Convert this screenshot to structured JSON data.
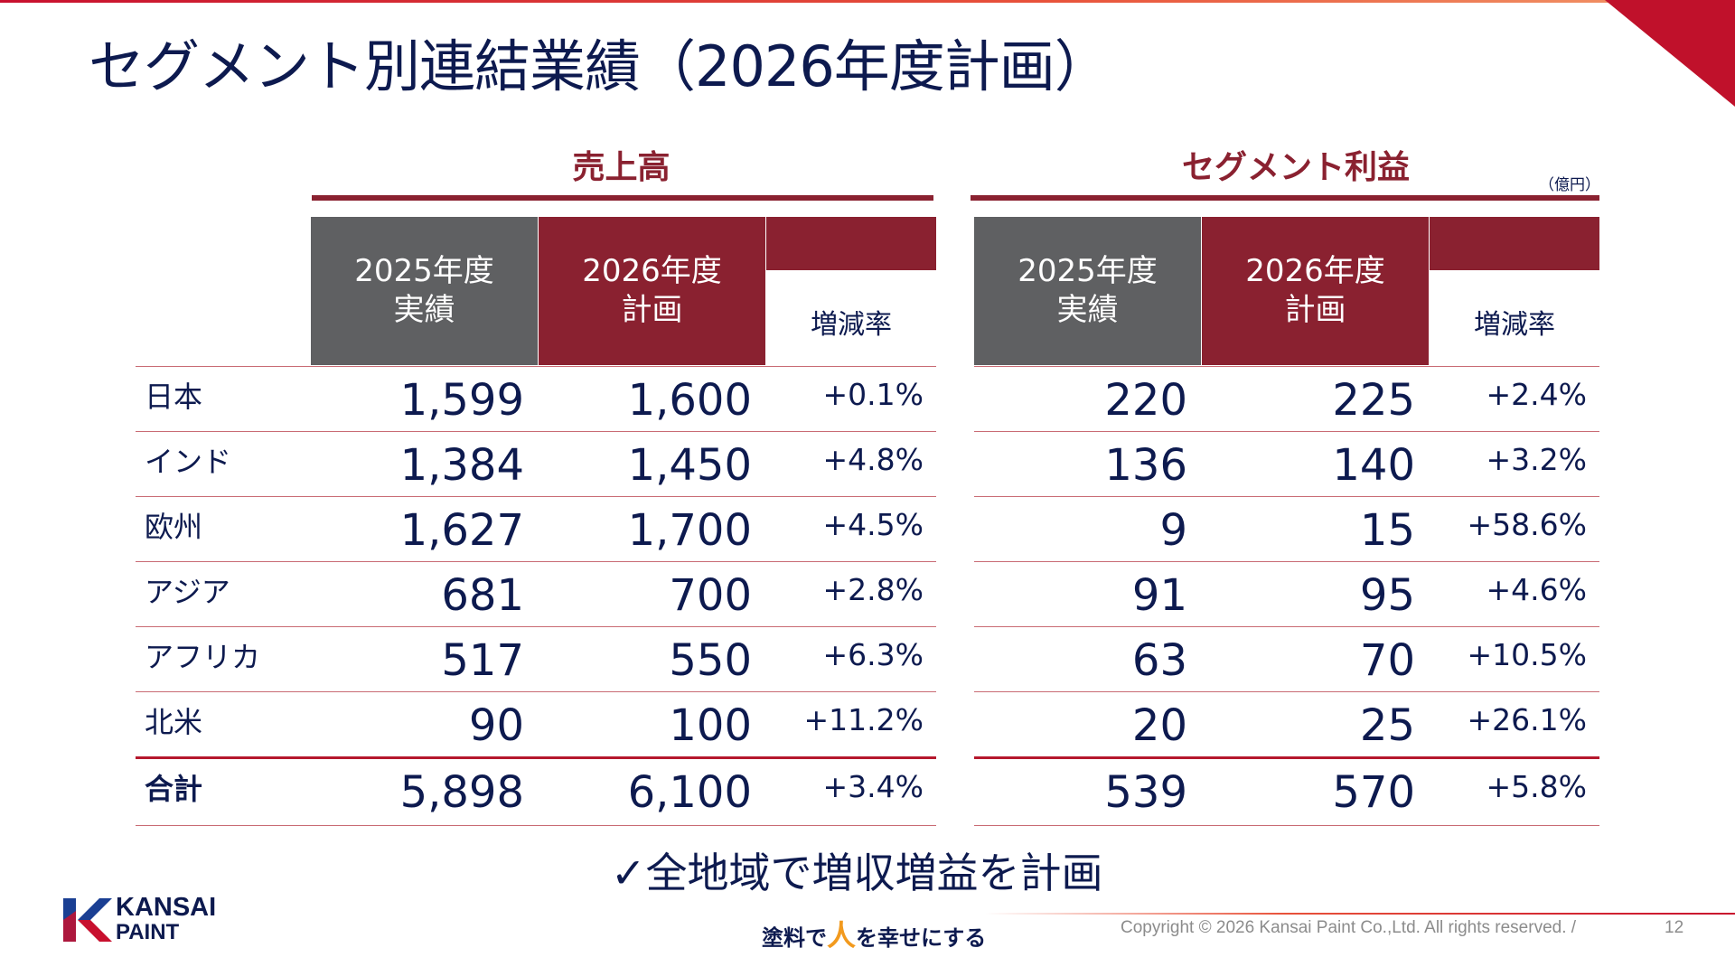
{
  "title": "セグメント別連結業績（2026年度計画）",
  "sales_header": "売上高",
  "profit_header": "セグメント利益",
  "unit": "（億円）",
  "columns": {
    "actual": [
      "2025年度",
      "実績"
    ],
    "plan": [
      "2026年度",
      "計画"
    ],
    "rate": "増減率"
  },
  "rows": [
    {
      "region": "日本",
      "sales_actual": "1,599",
      "sales_plan": "1,600",
      "sales_rate": "+0.1%",
      "profit_actual": "220",
      "profit_plan": "225",
      "profit_rate": "+2.4%"
    },
    {
      "region": "インド",
      "sales_actual": "1,384",
      "sales_plan": "1,450",
      "sales_rate": "+4.8%",
      "profit_actual": "136",
      "profit_plan": "140",
      "profit_rate": "+3.2%"
    },
    {
      "region": "欧州",
      "sales_actual": "1,627",
      "sales_plan": "1,700",
      "sales_rate": "+4.5%",
      "profit_actual": "9",
      "profit_plan": "15",
      "profit_rate": "+58.6%"
    },
    {
      "region": "アジア",
      "sales_actual": "681",
      "sales_plan": "700",
      "sales_rate": "+2.8%",
      "profit_actual": "91",
      "profit_plan": "95",
      "profit_rate": "+4.6%"
    },
    {
      "region": "アフリカ",
      "sales_actual": "517",
      "sales_plan": "550",
      "sales_rate": "+6.3%",
      "profit_actual": "63",
      "profit_plan": "70",
      "profit_rate": "+10.5%"
    },
    {
      "region": "北米",
      "sales_actual": "90",
      "sales_plan": "100",
      "sales_rate": "+11.2%",
      "profit_actual": "20",
      "profit_plan": "25",
      "profit_rate": "+26.1%"
    },
    {
      "region": "合計",
      "sales_actual": "5,898",
      "sales_plan": "6,100",
      "sales_rate": "+3.4%",
      "profit_actual": "539",
      "profit_plan": "570",
      "profit_rate": "+5.8%"
    }
  ],
  "note": "✓全地域で増収増益を計画",
  "logo": {
    "line1": "KANSAI",
    "line2": "PAINT"
  },
  "tagline": {
    "before": "塗料で",
    "highlight": "人",
    "after": "を幸せにする"
  },
  "copyright": "Copyright © 2026 Kansai Paint Co.,Ltd. All rights reserved.  /",
  "page_number": "12",
  "colors": {
    "navy": "#0d1a4f",
    "maroon": "#8a2130",
    "gray": "#5f6062",
    "red": "#c0112b",
    "orange": "#f29a1e"
  }
}
